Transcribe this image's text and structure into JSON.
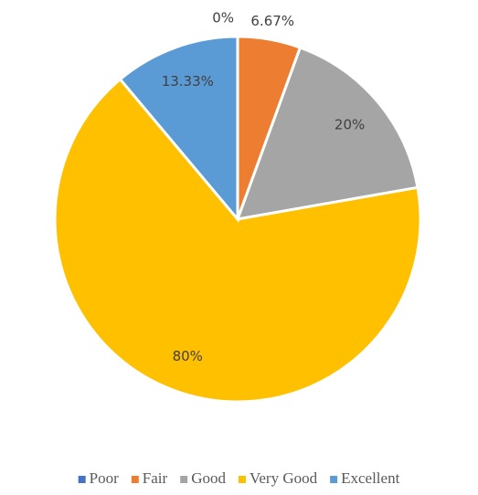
{
  "chart_data": {
    "type": "pie",
    "categories": [
      "Poor",
      "Fair",
      "Good",
      "Very Good",
      "Excellent"
    ],
    "values": [
      0,
      6.67,
      20,
      80,
      13.33
    ],
    "value_labels": [
      "0%",
      "6.67%",
      "20%",
      "80%",
      "13.33%"
    ],
    "colors": [
      "#4472c4",
      "#ed7d31",
      "#a5a5a5",
      "#ffc000",
      "#5b9bd5"
    ],
    "legend": "bottom"
  }
}
